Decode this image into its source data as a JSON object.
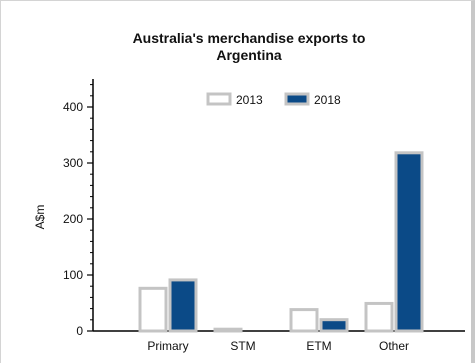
{
  "chart_data": {
    "type": "bar",
    "title_line1": "Australia's merchandise exports to",
    "title_line2": "Argentina",
    "ylabel": "A$m",
    "xlabel": "",
    "ylim": [
      0,
      450
    ],
    "yticks": [
      0,
      100,
      200,
      300,
      400
    ],
    "categories": [
      "Primary",
      "STM",
      "ETM",
      "Other"
    ],
    "series": [
      {
        "name": "2013",
        "values": [
          78,
          5,
          40,
          51
        ]
      },
      {
        "name": "2018",
        "values": [
          93,
          0,
          22,
          320
        ]
      }
    ],
    "legend_position": "top",
    "grid": false
  },
  "colors": {
    "series_2013_fill": "#ffffff",
    "series_2013_stroke": "#c4c4c4",
    "series_2018_fill": "#0b4a87",
    "series_2018_stroke": "#c4c4c4",
    "axis": "#000000"
  }
}
